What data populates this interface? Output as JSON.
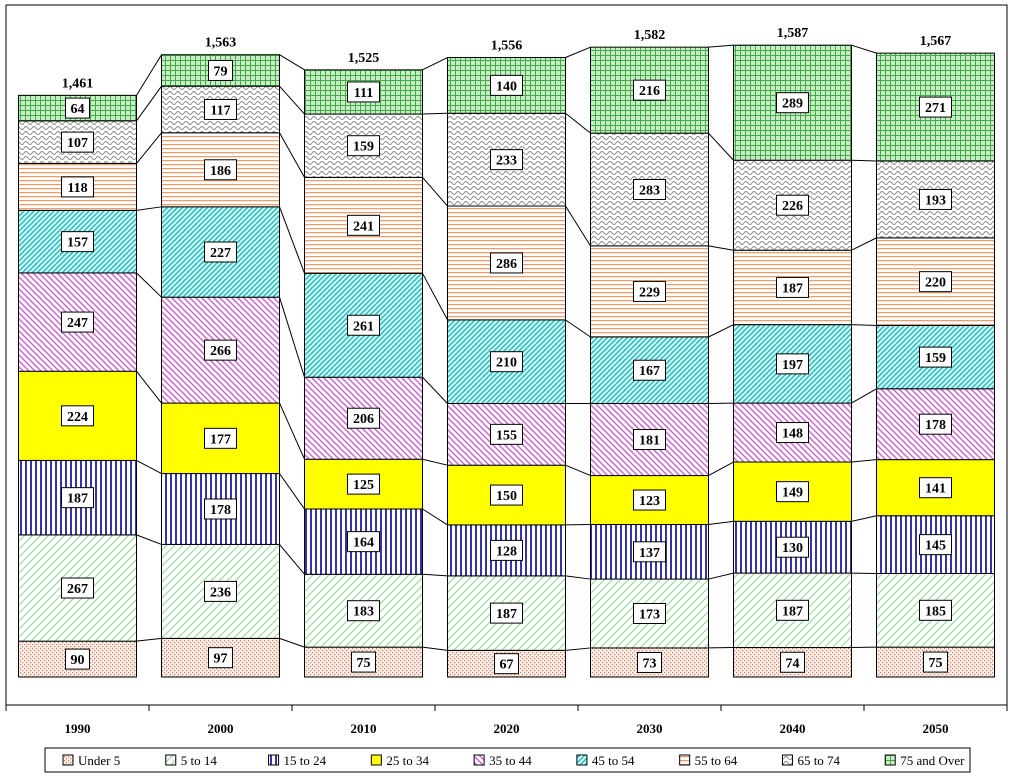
{
  "chart_data": {
    "type": "bar",
    "stacked": true,
    "categories": [
      "1990",
      "2000",
      "2010",
      "2020",
      "2030",
      "2040",
      "2050"
    ],
    "totals": [
      "1,461",
      "1,563",
      "1,525",
      "1,556",
      "1,582",
      "1,587",
      "1,567"
    ],
    "series": [
      {
        "name": "Under 5",
        "values": [
          90,
          97,
          75,
          67,
          73,
          74,
          75
        ],
        "color": "#f4d9cc",
        "pattern": "dots"
      },
      {
        "name": "5 to 14",
        "values": [
          267,
          236,
          183,
          187,
          173,
          187,
          185
        ],
        "color": "#9fdfa0",
        "pattern": "diag-ur"
      },
      {
        "name": "15 to 24",
        "values": [
          187,
          178,
          164,
          128,
          137,
          130,
          145
        ],
        "color": "#3333aa",
        "pattern": "vlines"
      },
      {
        "name": "25 to 34",
        "values": [
          224,
          177,
          125,
          150,
          123,
          149,
          141
        ],
        "color": "#ffff00",
        "pattern": "solid"
      },
      {
        "name": "35 to 44",
        "values": [
          247,
          266,
          206,
          155,
          181,
          148,
          178
        ],
        "color": "#cc66cc",
        "pattern": "diag-dr"
      },
      {
        "name": "45 to 54",
        "values": [
          157,
          227,
          261,
          210,
          167,
          197,
          159
        ],
        "color": "#33cccc",
        "pattern": "diag-ur-dense"
      },
      {
        "name": "55 to 64",
        "values": [
          118,
          186,
          241,
          286,
          229,
          187,
          220
        ],
        "color": "#e8a070",
        "pattern": "hlines"
      },
      {
        "name": "65 to 74",
        "values": [
          107,
          117,
          159,
          233,
          283,
          226,
          193
        ],
        "color": "#888888",
        "pattern": "wave"
      },
      {
        "name": "75 and Over",
        "values": [
          64,
          79,
          111,
          140,
          216,
          289,
          271
        ],
        "color": "#44aa44",
        "pattern": "grid"
      }
    ],
    "ylim": [
      0,
      1600
    ],
    "grid": false,
    "legend": "bottom"
  }
}
